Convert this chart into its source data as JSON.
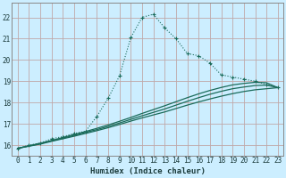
{
  "xlabel": "Humidex (Indice chaleur)",
  "bg_color": "#cceeff",
  "grid_color": "#c0a8a8",
  "line_color": "#1a6b5a",
  "xlim": [
    -0.5,
    23.5
  ],
  "ylim": [
    15.5,
    22.7
  ],
  "xticks": [
    0,
    1,
    2,
    3,
    4,
    5,
    6,
    7,
    8,
    9,
    10,
    11,
    12,
    13,
    14,
    15,
    16,
    17,
    18,
    19,
    20,
    21,
    22,
    23
  ],
  "yticks": [
    16,
    17,
    18,
    19,
    20,
    21,
    22
  ],
  "dotted_x": [
    0,
    1,
    2,
    3,
    4,
    5,
    6,
    7,
    8,
    9,
    10,
    11,
    12,
    13,
    14,
    15,
    16,
    17,
    18,
    19,
    20,
    21,
    22,
    23
  ],
  "dotted_y": [
    15.85,
    16.0,
    16.1,
    16.3,
    16.4,
    16.55,
    16.65,
    17.35,
    18.2,
    19.25,
    21.05,
    22.0,
    22.15,
    21.5,
    21.0,
    20.3,
    20.2,
    19.85,
    19.3,
    19.2,
    19.1,
    19.0,
    18.85,
    18.7
  ],
  "line1_x": [
    0,
    1,
    2,
    3,
    4,
    5,
    6,
    7,
    8,
    9,
    10,
    11,
    12,
    13,
    14,
    15,
    16,
    17,
    18,
    19,
    20,
    21,
    22,
    23
  ],
  "line1_y": [
    15.85,
    15.95,
    16.05,
    16.18,
    16.3,
    16.42,
    16.55,
    16.68,
    16.82,
    16.97,
    17.13,
    17.28,
    17.42,
    17.56,
    17.72,
    17.88,
    18.03,
    18.17,
    18.3,
    18.42,
    18.52,
    18.6,
    18.65,
    18.7
  ],
  "line2_x": [
    0,
    1,
    2,
    3,
    4,
    5,
    6,
    7,
    8,
    9,
    10,
    11,
    12,
    13,
    14,
    15,
    16,
    17,
    18,
    19,
    20,
    21,
    22,
    23
  ],
  "line2_y": [
    15.85,
    15.96,
    16.07,
    16.2,
    16.33,
    16.46,
    16.6,
    16.73,
    16.88,
    17.04,
    17.21,
    17.38,
    17.54,
    17.7,
    17.88,
    18.06,
    18.23,
    18.39,
    18.53,
    18.65,
    18.73,
    18.8,
    18.82,
    18.7
  ],
  "line3_x": [
    0,
    1,
    2,
    3,
    4,
    5,
    6,
    7,
    8,
    9,
    10,
    11,
    12,
    13,
    14,
    15,
    16,
    17,
    18,
    19,
    20,
    21,
    22,
    23
  ],
  "line3_y": [
    15.85,
    15.97,
    16.09,
    16.22,
    16.36,
    16.5,
    16.64,
    16.79,
    16.95,
    17.12,
    17.3,
    17.49,
    17.67,
    17.85,
    18.04,
    18.23,
    18.41,
    18.57,
    18.71,
    18.83,
    18.9,
    18.95,
    18.93,
    18.7
  ]
}
